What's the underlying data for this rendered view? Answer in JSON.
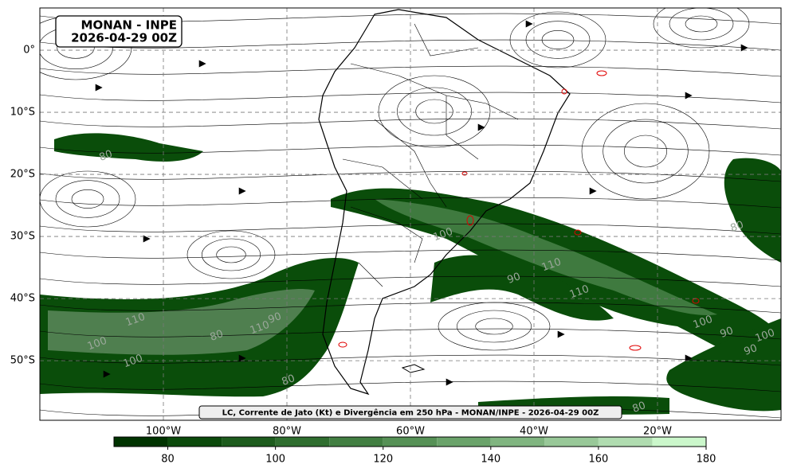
{
  "map": {
    "title": "MONAN - INPE",
    "datetime": "2026-04-29 00Z",
    "caption": "LC, Corrente de Jato (Kt) e Divergência em 250 hPa - MONAN/INPE - 2026-04-29 00Z",
    "xlim": [
      -120,
      0
    ],
    "ylim": [
      -59.6,
      6.8
    ],
    "xticks": [
      {
        "value": -100,
        "label": "100°W"
      },
      {
        "value": -80,
        "label": "80°W"
      },
      {
        "value": -60,
        "label": "60°W"
      },
      {
        "value": -40,
        "label": "40°W"
      },
      {
        "value": -20,
        "label": "20°W"
      }
    ],
    "yticks": [
      {
        "value": 0,
        "label": "0°"
      },
      {
        "value": -10,
        "label": "10°S"
      },
      {
        "value": -20,
        "label": "20°S"
      },
      {
        "value": -30,
        "label": "30°S"
      },
      {
        "value": -40,
        "label": "40°S"
      },
      {
        "value": -50,
        "label": "50°S"
      }
    ],
    "grid": true,
    "contour_labels": [
      80,
      110,
      100,
      100,
      80,
      110,
      90,
      80,
      100,
      90,
      110,
      110,
      100,
      90,
      90,
      100,
      80,
      80
    ]
  },
  "colorbar": {
    "lim": [
      70,
      180
    ],
    "ticks": [
      80,
      100,
      120,
      140,
      160,
      180
    ],
    "levels": [
      70,
      80,
      90,
      100,
      110,
      120,
      130,
      140,
      150,
      160,
      170,
      180
    ],
    "colors": [
      "#003300",
      "#0b4a0b",
      "#1d5c1d",
      "#2f6e2f",
      "#427f42",
      "#569156",
      "#6aa36a",
      "#80b580",
      "#98c898",
      "#b0dcb0",
      "#cbf7cb"
    ]
  }
}
